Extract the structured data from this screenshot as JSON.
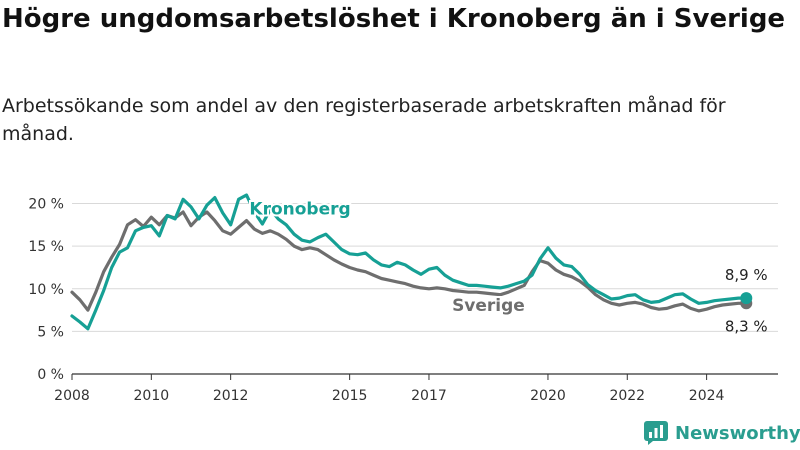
{
  "title": "Högre ungdomsarbetslöshet i Kronoberg än i Sverige",
  "subtitle": "Arbetssökande som andel av den registerbaserade arbetskraften månad för månad.",
  "colors": {
    "kronoberg": "#16a095",
    "sverige": "#6e6e6e",
    "grid": "#d9d9d9",
    "axis": "#333333",
    "brand": "#2a9d8f"
  },
  "brand": {
    "name": "Newsworthy",
    "icon": "newsworthy-chart-icon"
  },
  "chart_data": {
    "type": "line",
    "title": "Högre ungdomsarbetslöshet i Kronoberg än i Sverige",
    "ylabel": "",
    "xlabel": "",
    "ylim": [
      0,
      21
    ],
    "xlim": [
      2008,
      2025.8
    ],
    "yticks": [
      0,
      5,
      10,
      15,
      20
    ],
    "ytick_labels": [
      "0 %",
      "5 %",
      "10 %",
      "15 %",
      "20 %"
    ],
    "xticks": [
      2008,
      2010,
      2012,
      2015,
      2017,
      2020,
      2022,
      2024
    ],
    "xtick_labels": [
      "2008",
      "2010",
      "2012",
      "2015",
      "2017",
      "2020",
      "2022",
      "2024"
    ],
    "grid": true,
    "legend": "inline labels",
    "series": [
      {
        "name": "Kronoberg",
        "color": "#16a095",
        "x": [
          2008.0,
          2008.2,
          2008.4,
          2008.6,
          2008.8,
          2009.0,
          2009.2,
          2009.4,
          2009.6,
          2009.8,
          2010.0,
          2010.2,
          2010.4,
          2010.6,
          2010.8,
          2011.0,
          2011.2,
          2011.4,
          2011.6,
          2011.8,
          2012.0,
          2012.2,
          2012.4,
          2012.6,
          2012.8,
          2013.0,
          2013.2,
          2013.4,
          2013.6,
          2013.8,
          2014.0,
          2014.2,
          2014.4,
          2014.6,
          2014.8,
          2015.0,
          2015.2,
          2015.4,
          2015.6,
          2015.8,
          2016.0,
          2016.2,
          2016.4,
          2016.6,
          2016.8,
          2017.0,
          2017.2,
          2017.4,
          2017.6,
          2017.8,
          2018.0,
          2018.2,
          2018.4,
          2018.6,
          2018.8,
          2019.0,
          2019.2,
          2019.4,
          2019.6,
          2019.8,
          2020.0,
          2020.2,
          2020.4,
          2020.6,
          2020.8,
          2021.0,
          2021.2,
          2021.4,
          2021.6,
          2021.8,
          2022.0,
          2022.2,
          2022.4,
          2022.6,
          2022.8,
          2023.0,
          2023.2,
          2023.4,
          2023.6,
          2023.8,
          2024.0,
          2024.2,
          2024.4,
          2024.6,
          2024.8,
          2025.0
        ],
        "values": [
          6.8,
          6.1,
          5.3,
          7.5,
          9.8,
          12.5,
          14.3,
          14.8,
          16.8,
          17.2,
          17.4,
          16.2,
          18.6,
          18.2,
          20.5,
          19.6,
          18.2,
          19.8,
          20.7,
          18.9,
          17.5,
          20.5,
          21.0,
          19.0,
          17.6,
          19.3,
          18.2,
          17.5,
          16.4,
          15.7,
          15.5,
          16.0,
          16.4,
          15.5,
          14.6,
          14.1,
          14.0,
          14.2,
          13.4,
          12.8,
          12.6,
          13.1,
          12.8,
          12.2,
          11.7,
          12.3,
          12.5,
          11.6,
          11.0,
          10.7,
          10.4,
          10.4,
          10.3,
          10.2,
          10.1,
          10.3,
          10.6,
          10.9,
          11.6,
          13.5,
          14.8,
          13.6,
          12.8,
          12.6,
          11.7,
          10.5,
          9.8,
          9.3,
          8.8,
          8.9,
          9.2,
          9.3,
          8.7,
          8.4,
          8.5,
          8.9,
          9.3,
          9.4,
          8.8,
          8.3,
          8.4,
          8.6,
          8.7,
          8.8,
          8.9,
          8.9
        ]
      },
      {
        "name": "Sverige",
        "color": "#6e6e6e",
        "x": [
          2008.0,
          2008.2,
          2008.4,
          2008.6,
          2008.8,
          2009.0,
          2009.2,
          2009.4,
          2009.6,
          2009.8,
          2010.0,
          2010.2,
          2010.4,
          2010.6,
          2010.8,
          2011.0,
          2011.2,
          2011.4,
          2011.6,
          2011.8,
          2012.0,
          2012.2,
          2012.4,
          2012.6,
          2012.8,
          2013.0,
          2013.2,
          2013.4,
          2013.6,
          2013.8,
          2014.0,
          2014.2,
          2014.4,
          2014.6,
          2014.8,
          2015.0,
          2015.2,
          2015.4,
          2015.6,
          2015.8,
          2016.0,
          2016.2,
          2016.4,
          2016.6,
          2016.8,
          2017.0,
          2017.2,
          2017.4,
          2017.6,
          2017.8,
          2018.0,
          2018.2,
          2018.4,
          2018.6,
          2018.8,
          2019.0,
          2019.2,
          2019.4,
          2019.6,
          2019.8,
          2020.0,
          2020.2,
          2020.4,
          2020.6,
          2020.8,
          2021.0,
          2021.2,
          2021.4,
          2021.6,
          2021.8,
          2022.0,
          2022.2,
          2022.4,
          2022.6,
          2022.8,
          2023.0,
          2023.2,
          2023.4,
          2023.6,
          2023.8,
          2024.0,
          2024.2,
          2024.4,
          2024.6,
          2024.8,
          2025.0
        ],
        "values": [
          9.6,
          8.7,
          7.5,
          9.6,
          12.0,
          13.7,
          15.2,
          17.5,
          18.1,
          17.3,
          18.4,
          17.5,
          18.6,
          18.3,
          19.0,
          17.4,
          18.4,
          19.0,
          18.0,
          16.8,
          16.4,
          17.2,
          18.0,
          17.0,
          16.5,
          16.8,
          16.4,
          15.8,
          15.0,
          14.6,
          14.8,
          14.6,
          14.0,
          13.4,
          12.9,
          12.5,
          12.2,
          12.0,
          11.6,
          11.2,
          11.0,
          10.8,
          10.6,
          10.3,
          10.1,
          10.0,
          10.1,
          10.0,
          9.8,
          9.7,
          9.6,
          9.6,
          9.5,
          9.4,
          9.3,
          9.6,
          10.0,
          10.4,
          12.0,
          13.3,
          13.0,
          12.2,
          11.7,
          11.4,
          10.9,
          10.2,
          9.3,
          8.7,
          8.3,
          8.1,
          8.3,
          8.4,
          8.2,
          7.8,
          7.6,
          7.7,
          8.0,
          8.2,
          7.7,
          7.4,
          7.6,
          7.9,
          8.1,
          8.2,
          8.3,
          8.3
        ]
      }
    ],
    "end_labels": [
      "8,9 %",
      "8,3 %"
    ]
  }
}
